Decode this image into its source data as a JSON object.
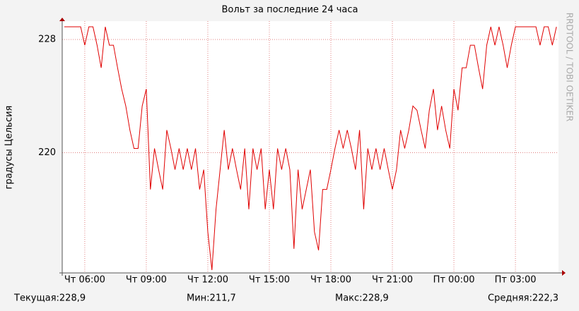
{
  "chart_data": {
    "type": "line",
    "title": "Вольт за последние 24 часа",
    "y_label": "градусы Цельсия",
    "watermark": "RRDTOOL / TOBI OETIKER",
    "x": [
      5.0,
      5.2,
      5.4,
      5.6,
      5.8,
      6.0,
      6.2,
      6.4,
      6.6,
      6.8,
      7.0,
      7.2,
      7.4,
      7.6,
      7.8,
      8.0,
      8.2,
      8.4,
      8.6,
      8.8,
      9.0,
      9.2,
      9.4,
      9.6,
      9.8,
      10.0,
      10.2,
      10.4,
      10.6,
      10.8,
      11.0,
      11.2,
      11.4,
      11.6,
      11.8,
      12.0,
      12.2,
      12.4,
      12.6,
      12.8,
      13.0,
      13.2,
      13.4,
      13.6,
      13.8,
      14.0,
      14.2,
      14.4,
      14.6,
      14.8,
      15.0,
      15.2,
      15.4,
      15.6,
      15.8,
      16.0,
      16.2,
      16.4,
      16.6,
      16.8,
      17.0,
      17.2,
      17.4,
      17.6,
      17.8,
      18.0,
      18.2,
      18.4,
      18.6,
      18.8,
      19.0,
      19.2,
      19.4,
      19.6,
      19.8,
      20.0,
      20.2,
      20.4,
      20.6,
      20.8,
      21.0,
      21.2,
      21.4,
      21.6,
      21.8,
      22.0,
      22.2,
      22.4,
      22.6,
      22.8,
      23.0,
      23.2,
      23.4,
      23.6,
      23.8,
      24.0,
      24.2,
      24.4,
      24.6,
      24.8,
      25.0,
      25.2,
      25.4,
      25.6,
      25.8,
      26.0,
      26.2,
      26.4,
      26.6,
      26.8,
      27.0,
      27.2,
      27.4,
      27.6,
      27.8,
      28.0,
      28.2,
      28.4,
      28.6,
      28.8,
      29.0
    ],
    "series": [
      {
        "color": "#e00000",
        "values": [
          228.9,
          228.9,
          228.9,
          228.9,
          228.9,
          227.6,
          228.9,
          228.9,
          227.6,
          226.0,
          228.9,
          227.6,
          227.6,
          226.0,
          224.5,
          223.3,
          221.6,
          220.3,
          220.3,
          223.3,
          224.5,
          217.4,
          220.3,
          218.8,
          217.4,
          221.6,
          220.3,
          218.8,
          220.3,
          218.8,
          220.3,
          218.8,
          220.3,
          217.4,
          218.8,
          214.4,
          211.7,
          216.0,
          218.8,
          221.6,
          218.8,
          220.3,
          218.8,
          217.4,
          220.3,
          216.0,
          220.3,
          218.8,
          220.3,
          216.0,
          218.8,
          216.0,
          220.3,
          218.8,
          220.3,
          218.8,
          213.2,
          218.8,
          216.0,
          217.4,
          218.8,
          214.4,
          213.1,
          217.4,
          217.4,
          218.8,
          220.3,
          221.6,
          220.3,
          221.6,
          220.3,
          218.8,
          221.6,
          216.0,
          220.3,
          218.8,
          220.3,
          218.8,
          220.3,
          218.8,
          217.4,
          218.8,
          221.6,
          220.3,
          221.6,
          223.3,
          223.0,
          221.6,
          220.3,
          223.0,
          224.5,
          221.6,
          223.3,
          221.6,
          220.3,
          224.5,
          223.0,
          226.0,
          226.0,
          227.6,
          227.6,
          226.0,
          224.5,
          227.6,
          228.9,
          227.6,
          228.9,
          227.6,
          226.0,
          227.6,
          228.9,
          228.9,
          228.9,
          228.9,
          228.9,
          228.9,
          227.6,
          228.9,
          228.9,
          227.6,
          228.9
        ]
      }
    ],
    "xlim": [
      4.9,
      29.1
    ],
    "xticks": [
      {
        "value": 6,
        "label": "Чт 06:00"
      },
      {
        "value": 9,
        "label": "Чт 09:00"
      },
      {
        "value": 12,
        "label": "Чт 12:00"
      },
      {
        "value": 15,
        "label": "Чт 15:00"
      },
      {
        "value": 18,
        "label": "Чт 18:00"
      },
      {
        "value": 21,
        "label": "Чт 21:00"
      },
      {
        "value": 24,
        "label": "Пт 00:00"
      },
      {
        "value": 27,
        "label": "Пт 03:00"
      }
    ],
    "ylim": [
      211.5,
      229
    ],
    "yticks": [
      220,
      228
    ],
    "grid": true,
    "summary": [
      "Текущая:228,9",
      "Мин:211,7",
      "Макс:228,9",
      "Средняя:222,3"
    ]
  }
}
